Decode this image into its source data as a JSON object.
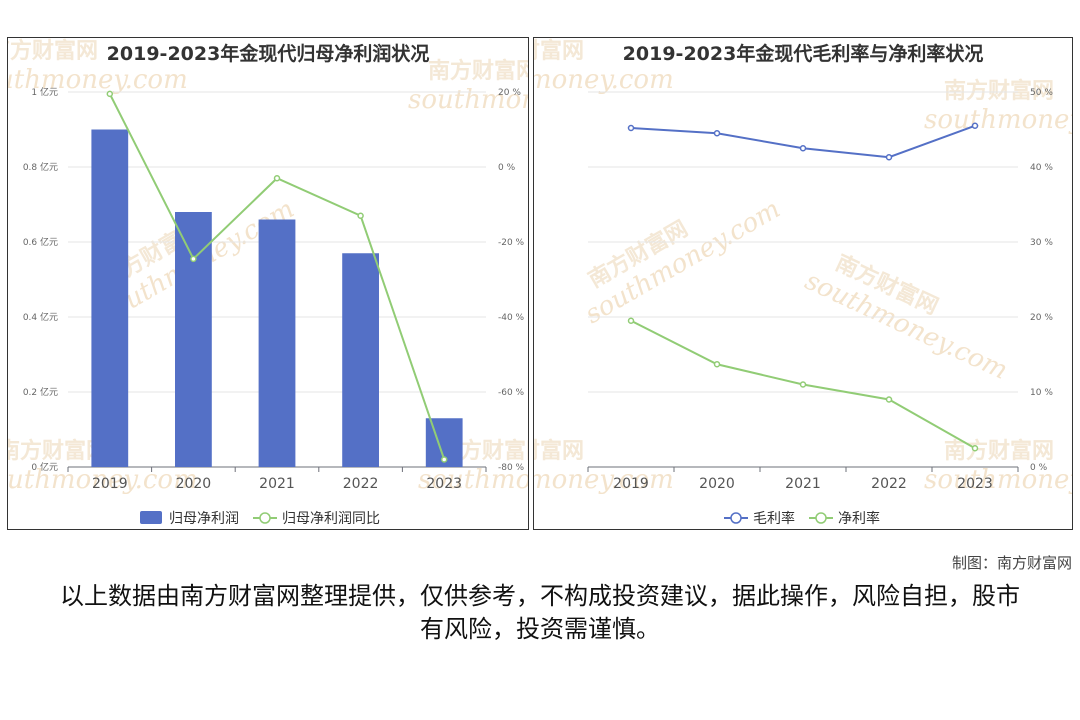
{
  "chart_data": [
    {
      "type": "bar",
      "title": "2019-2023年金现代归母净利润状况",
      "categories": [
        "2019",
        "2020",
        "2021",
        "2022",
        "2023"
      ],
      "series": [
        {
          "name": "归母净利润",
          "type": "bar",
          "axis": "left",
          "color": "#5470c6",
          "values": [
            0.9,
            0.68,
            0.66,
            0.57,
            0.13
          ]
        },
        {
          "name": "归母净利润同比",
          "type": "line",
          "axis": "right",
          "color": "#91cc75",
          "values": [
            19.5,
            -24.5,
            -3.0,
            -13.0,
            -78.0
          ]
        }
      ],
      "y_left": {
        "ylim": [
          0,
          1
        ],
        "ticks": [
          0,
          0.2,
          0.4,
          0.6,
          0.8,
          1
        ],
        "tick_labels": [
          "0 亿元",
          "0.2 亿元",
          "0.4 亿元",
          "0.6 亿元",
          "0.8 亿元",
          "1 亿元"
        ]
      },
      "y_right": {
        "ylim": [
          -80,
          20
        ],
        "ticks": [
          -80,
          -60,
          -40,
          -20,
          0,
          20
        ],
        "tick_labels": [
          "-80 %",
          "-60 %",
          "-40 %",
          "-20 %",
          "0 %",
          "20 %"
        ]
      },
      "legend": "bottom",
      "grid": true
    },
    {
      "type": "line",
      "title": "2019-2023年金现代毛利率与净利率状况",
      "categories": [
        "2019",
        "2020",
        "2021",
        "2022",
        "2023"
      ],
      "series": [
        {
          "name": "毛利率",
          "color": "#5470c6",
          "values": [
            45.2,
            44.5,
            42.5,
            41.3,
            45.5
          ]
        },
        {
          "name": "净利率",
          "color": "#91cc75",
          "values": [
            19.5,
            13.7,
            11.0,
            9.0,
            2.5
          ]
        }
      ],
      "y_right": {
        "ylim": [
          0,
          50
        ],
        "ticks": [
          0,
          10,
          20,
          30,
          40,
          50
        ],
        "tick_labels": [
          "0 %",
          "10 %",
          "20 %",
          "30 %",
          "40 %",
          "50 %"
        ]
      },
      "legend": "bottom",
      "grid": true
    }
  ],
  "watermark": {
    "cn": "南方财富网",
    "en": "southmoney.com"
  },
  "credit": "制图：南方财富网",
  "disclaimer": "以上数据由南方财富网整理提供，仅供参考，不构成投资建议，据此操作，风险自担，股市有风险，投资需谨慎。"
}
